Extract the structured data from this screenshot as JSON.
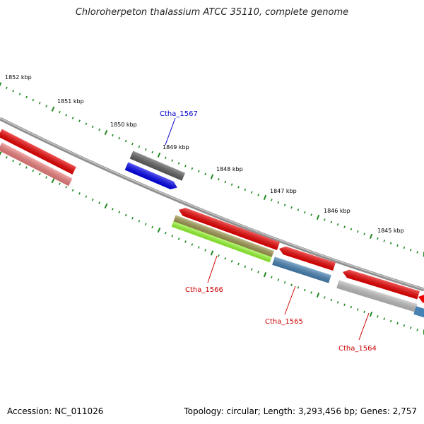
{
  "title": "Chloroherpeton thalassium ATCC 35110, complete genome",
  "footer": {
    "accession": "Accession: NC_011026",
    "summary": "Topology: circular; Length: 3,293,456 bp; Genes: 2,757"
  },
  "kbp_labels": [
    "1852 kbp",
    "1851 kbp",
    "1850 kbp",
    "1849 kbp",
    "1848 kbp",
    "1847 kbp",
    "1846 kbp",
    "1845 kbp"
  ],
  "gene_labels": [
    {
      "text": "Ctha_1567",
      "color": "#0000cc"
    },
    {
      "text": "Ctha_1566",
      "color": "#cc0000"
    },
    {
      "text": "Ctha_1565",
      "color": "#cc0000"
    },
    {
      "text": "Ctha_1564",
      "color": "#cc0000"
    }
  ],
  "colors": {
    "backbone": "#808080",
    "tick": "#228b22",
    "cds_red": "#ee0000",
    "cds_pink": "#f08080",
    "cds_gray": "#606060",
    "cds_blue": "#0000ee",
    "cds_olive": "#a09a50",
    "cds_lime": "#99ff33",
    "cds_steel": "#4682b4",
    "cds_silver": "#c0c0c0"
  }
}
